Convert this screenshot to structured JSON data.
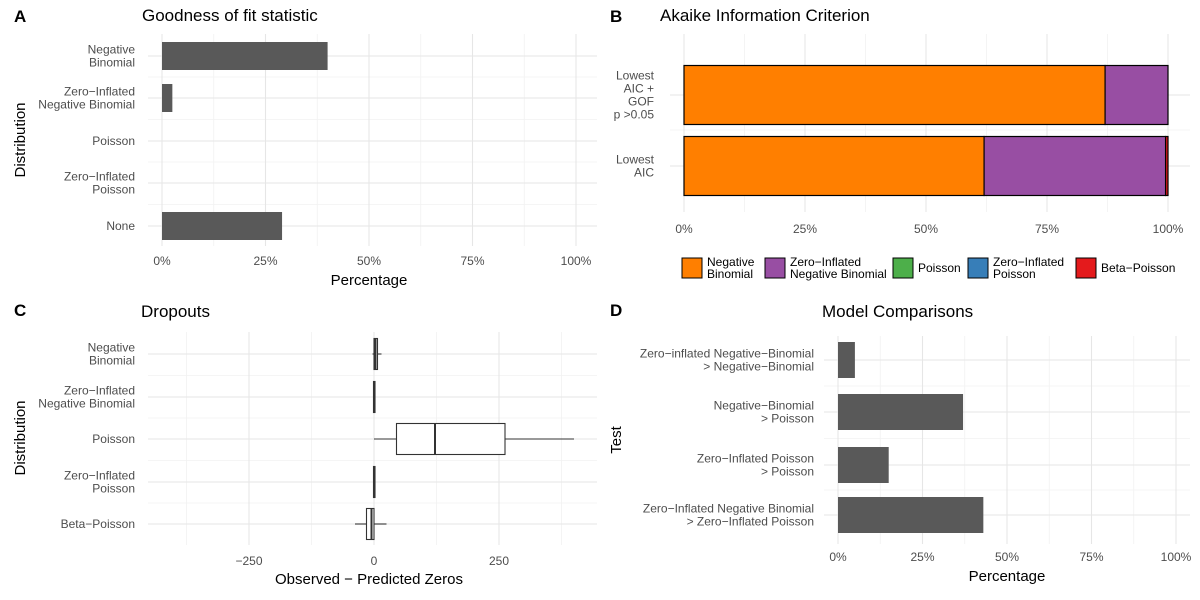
{
  "chart_data": [
    {
      "panel": "A",
      "type": "bar",
      "orientation": "horizontal",
      "title": "Goodness of fit statistic",
      "xlabel": "Percentage",
      "ylabel": "Distribution",
      "categories": [
        "Negative\nBinomial",
        "Zero−Inflated\nNegative Binomial",
        "Poisson",
        "Zero−Inflated\nPoisson",
        "None"
      ],
      "values": [
        40,
        2.5,
        0,
        0,
        29
      ],
      "xlim": [
        0,
        100
      ],
      "xticks": [
        "0%",
        "25%",
        "50%",
        "75%",
        "100%"
      ],
      "color": "#595959",
      "grid": true
    },
    {
      "panel": "B",
      "type": "bar",
      "orientation": "horizontal",
      "stacked": true,
      "title": "Akaike Information Criterion",
      "categories": [
        "Lowest\nAIC +\nGOF\np >0.05",
        "Lowest\nAIC"
      ],
      "series": [
        {
          "name": "Negative\nBinomial",
          "color": "#ff7f00",
          "values": [
            87,
            62
          ]
        },
        {
          "name": "Zero−Inflated\nNegative Binomial",
          "color": "#984ea3",
          "values": [
            13,
            37.5
          ]
        },
        {
          "name": "Poisson",
          "color": "#4daf4a",
          "values": [
            0,
            0
          ]
        },
        {
          "name": "Zero−Inflated\nPoisson",
          "color": "#377eb8",
          "values": [
            0,
            0
          ]
        },
        {
          "name": "Beta−Poisson",
          "color": "#e41a1c",
          "values": [
            0,
            0.5
          ]
        }
      ],
      "xlim": [
        0,
        100
      ],
      "xticks": [
        "0%",
        "25%",
        "50%",
        "75%",
        "100%"
      ],
      "legend_position": "bottom",
      "grid": true
    },
    {
      "panel": "C",
      "type": "box",
      "orientation": "horizontal",
      "title": "Dropouts",
      "xlabel": "Observed − Predicted Zeros",
      "ylabel": "Distribution",
      "categories": [
        "Negative\nBinomial",
        "Zero−Inflated\nNegative Binomial",
        "Poisson",
        "Zero−Inflated\nPoisson",
        "Beta−Poisson"
      ],
      "boxes": [
        {
          "min": -3,
          "q1": 0,
          "median": 3,
          "q3": 7,
          "max": 15
        },
        {
          "min": -1,
          "q1": -1,
          "median": 0,
          "q3": 1,
          "max": 1
        },
        {
          "min": 0,
          "q1": 45,
          "median": 122,
          "q3": 262,
          "max": 400
        },
        {
          "min": -1,
          "q1": -1,
          "median": 0,
          "q3": 1,
          "max": 1
        },
        {
          "min": -38,
          "q1": -15,
          "median": -5,
          "q3": 0,
          "max": 25
        }
      ],
      "xlim": [
        -440,
        420
      ],
      "xticks": [
        -250,
        0,
        250
      ],
      "grid": true
    },
    {
      "panel": "D",
      "type": "bar",
      "orientation": "horizontal",
      "title": "Model Comparisons",
      "xlabel": "Percentage",
      "ylabel": "Test",
      "categories": [
        "Zero−inflated Negative−Binomial\n> Negative−Binomial",
        "Negative−Binomial\n> Poisson",
        "Zero−Inflated Poisson\n> Poisson",
        "Zero−Inflated Negative Binomial\n> Zero−Inflated Poisson"
      ],
      "values": [
        5,
        37,
        15,
        43
      ],
      "xlim": [
        0,
        100
      ],
      "xticks": [
        "0%",
        "25%",
        "50%",
        "75%",
        "100%"
      ],
      "color": "#595959",
      "grid": true
    }
  ]
}
